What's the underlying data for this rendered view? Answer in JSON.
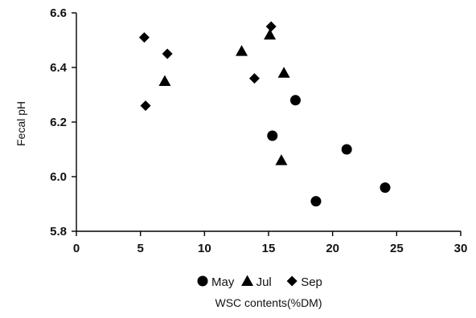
{
  "chart_data": {
    "type": "scatter",
    "title": "",
    "xlabel": "WSC contents(%DM)",
    "ylabel": "Fecal pH",
    "xlim": [
      0,
      30
    ],
    "ylim": [
      5.8,
      6.6
    ],
    "x_ticks": [
      "0",
      "5",
      "10",
      "15",
      "20",
      "25",
      "30"
    ],
    "y_ticks": [
      "5.8",
      "6.0",
      "6.2",
      "6.4",
      "6.6"
    ],
    "legend_position": "bottom",
    "grid": false,
    "series": [
      {
        "name": "May",
        "marker": "circle",
        "points": [
          {
            "x": 15.3,
            "y": 6.15
          },
          {
            "x": 17.1,
            "y": 6.28
          },
          {
            "x": 18.7,
            "y": 5.91
          },
          {
            "x": 21.1,
            "y": 6.1
          },
          {
            "x": 24.1,
            "y": 5.96
          }
        ]
      },
      {
        "name": "Jul",
        "marker": "triangle",
        "points": [
          {
            "x": 6.9,
            "y": 6.35
          },
          {
            "x": 12.9,
            "y": 6.46
          },
          {
            "x": 15.1,
            "y": 6.52
          },
          {
            "x": 16.2,
            "y": 6.38
          },
          {
            "x": 16.0,
            "y": 6.06
          }
        ]
      },
      {
        "name": "Sep",
        "marker": "diamond",
        "points": [
          {
            "x": 5.3,
            "y": 6.51
          },
          {
            "x": 7.1,
            "y": 6.45
          },
          {
            "x": 5.4,
            "y": 6.26
          },
          {
            "x": 13.9,
            "y": 6.36
          },
          {
            "x": 15.2,
            "y": 6.55
          }
        ]
      }
    ]
  },
  "colors": {
    "marker": "#000000",
    "axis": "#000000",
    "background": "#ffffff"
  }
}
